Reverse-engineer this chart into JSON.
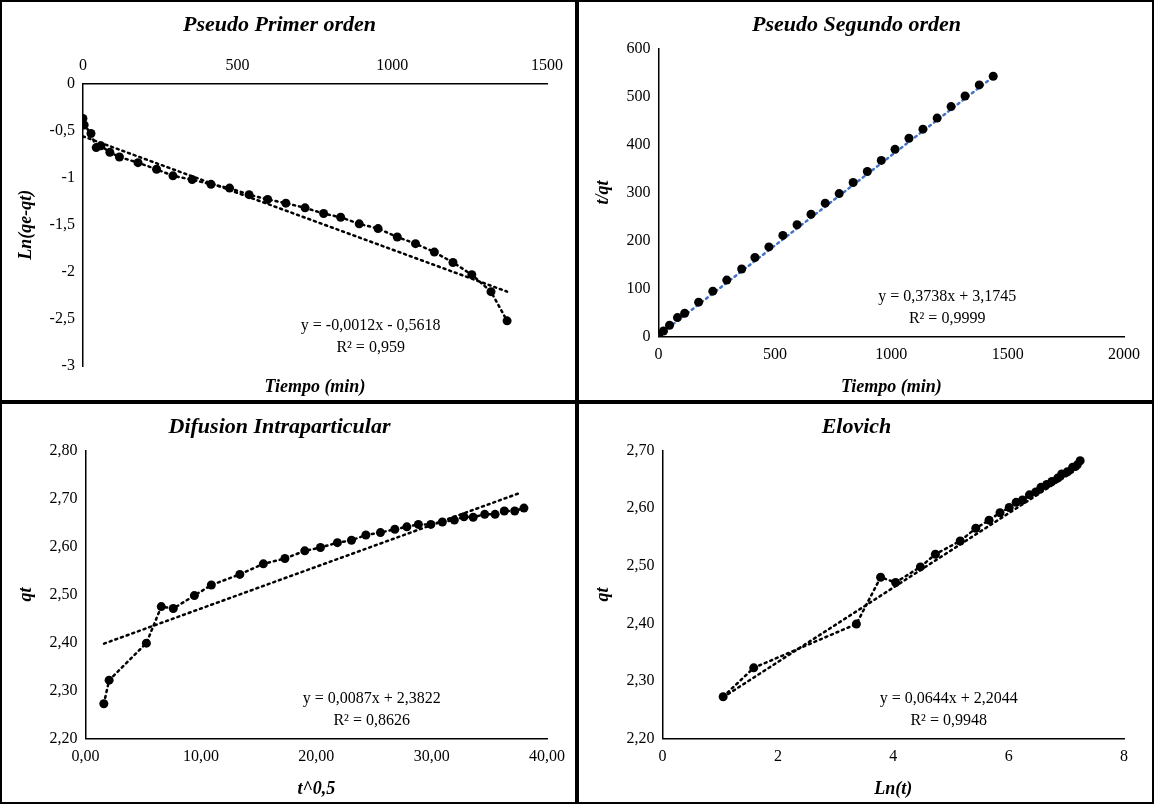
{
  "chart_data": [
    {
      "type": "line",
      "title": "Pseudo Primer orden",
      "xlabel": "Tiempo (min)",
      "ylabel": "Ln(qe-qt)",
      "xlim": [
        0,
        1500
      ],
      "xticks": [
        0,
        500,
        1000,
        1500
      ],
      "ylim": [
        -3,
        0
      ],
      "yticks": [
        -3,
        {
          "value": -2.5,
          "label": "-2,5"
        },
        -2,
        {
          "value": -1.5,
          "label": "-1,5"
        },
        -1,
        {
          "value": -0.5,
          "label": "-0,5"
        },
        0
      ],
      "series": [
        {
          "color": "#000000",
          "marker": "circle",
          "line_style": "dotted",
          "x": [
            0,
            4,
            26,
            43,
            58,
            87,
            118,
            178,
            238,
            291,
            353,
            414,
            474,
            537,
            597,
            656,
            718,
            778,
            833,
            893,
            954,
            1016,
            1075,
            1136,
            1196,
            1257,
            1319,
            1371
          ],
          "values": [
            -0.37,
            -0.44,
            -0.53,
            -0.68,
            -0.66,
            -0.73,
            -0.78,
            -0.84,
            -0.91,
            -0.98,
            -1.02,
            -1.07,
            -1.11,
            -1.18,
            -1.23,
            -1.27,
            -1.32,
            -1.38,
            -1.42,
            -1.49,
            -1.54,
            -1.63,
            -1.7,
            -1.79,
            -1.9,
            -2.03,
            -2.21,
            -2.52
          ]
        },
        {
          "color": "#000000",
          "marker": "none",
          "line_style": "dotted",
          "x": [
            0,
            1371
          ],
          "values": [
            -0.56,
            -2.21
          ]
        }
      ],
      "annotations": [
        "y = -0,0012x - 0,5618",
        "R² = 0,959"
      ]
    },
    {
      "type": "line",
      "title": "Pseudo Segundo orden",
      "xlabel": "Tiempo (min)",
      "ylabel": "t/qt",
      "xlim": [
        0,
        2000
      ],
      "xticks": [
        0,
        500,
        1000,
        1500,
        2000
      ],
      "ylim": [
        0,
        600
      ],
      "yticks": [
        0,
        100,
        200,
        300,
        400,
        500,
        600
      ],
      "series": [
        {
          "type": "scatter",
          "color": "#000000",
          "marker": "circle",
          "x": [
            0,
            21,
            47,
            81,
            112,
            172,
            233,
            293,
            357,
            414,
            474,
            534,
            595,
            655,
            716,
            776,
            836,
            897,
            957,
            1016,
            1076,
            1136,
            1197,
            1257,
            1317,
            1378,
            1438
          ],
          "values": [
            3,
            12,
            24,
            40,
            49,
            72,
            95,
            118,
            141,
            165,
            187,
            211,
            233,
            255,
            278,
            298,
            321,
            344,
            367,
            390,
            413,
            432,
            455,
            479,
            501,
            524,
            542
          ]
        },
        {
          "color": "#4472c4",
          "marker": "none",
          "line_style": "dotted",
          "x": [
            0,
            1438
          ],
          "values": [
            3,
            541
          ]
        }
      ],
      "annotations": [
        "y = 0,3738x + 3,1745",
        "R² = 0,9999"
      ]
    },
    {
      "type": "line",
      "title": "Difusion Intraparticular",
      "xlabel": "t^0,5",
      "ylabel": "qt",
      "xlim": [
        0,
        40
      ],
      "xticks": [
        {
          "value": 0,
          "label": "0,00"
        },
        {
          "value": 10,
          "label": "10,00"
        },
        {
          "value": 20,
          "label": "20,00"
        },
        {
          "value": 30,
          "label": "30,00"
        },
        {
          "value": 40,
          "label": "40,00"
        }
      ],
      "ylim": [
        2.2,
        2.8
      ],
      "yticks": [
        {
          "value": 2.2,
          "label": "2,20"
        },
        {
          "value": 2.3,
          "label": "2,30"
        },
        {
          "value": 2.4,
          "label": "2,40"
        },
        {
          "value": 2.5,
          "label": "2,50"
        },
        {
          "value": 2.6,
          "label": "2,60"
        },
        {
          "value": 2.7,
          "label": "2,70"
        },
        {
          "value": 2.8,
          "label": "2,80"
        }
      ],
      "series": [
        {
          "color": "#000000",
          "marker": "circle",
          "line_style": "dotted",
          "x": [
            1.58,
            2.04,
            5.27,
            6.56,
            7.6,
            9.43,
            10.9,
            13.37,
            15.41,
            17.28,
            19.0,
            20.36,
            21.83,
            23.05,
            24.3,
            25.56,
            26.81,
            27.85,
            28.85,
            29.93,
            30.93,
            31.97,
            32.8,
            33.6,
            34.6,
            35.5,
            36.3,
            37.2,
            38.0
          ],
          "values": [
            2.273,
            2.322,
            2.399,
            2.475,
            2.471,
            2.498,
            2.52,
            2.542,
            2.564,
            2.575,
            2.591,
            2.598,
            2.608,
            2.613,
            2.624,
            2.629,
            2.636,
            2.641,
            2.646,
            2.646,
            2.651,
            2.655,
            2.662,
            2.661,
            2.667,
            2.667,
            2.674,
            2.674,
            2.68
          ]
        },
        {
          "color": "#000000",
          "marker": "none",
          "line_style": "dotted",
          "x": [
            1.6,
            37.6
          ],
          "values": [
            2.398,
            2.711
          ]
        }
      ],
      "annotations": [
        "y = 0,0087x + 2,3822",
        "R² = 0,8626"
      ]
    },
    {
      "type": "line",
      "title": "Elovich",
      "xlabel": "Ln(t)",
      "ylabel": "qt",
      "xlim": [
        0,
        8
      ],
      "xticks": [
        0,
        2,
        4,
        6,
        8
      ],
      "ylim": [
        2.2,
        2.7
      ],
      "yticks": [
        {
          "value": 2.2,
          "label": "2,20"
        },
        {
          "value": 2.3,
          "label": "2,30"
        },
        {
          "value": 2.4,
          "label": "2,40"
        },
        {
          "value": 2.5,
          "label": "2,50"
        },
        {
          "value": 2.6,
          "label": "2,60"
        },
        {
          "value": 2.7,
          "label": "2,70"
        }
      ],
      "series": [
        {
          "color": "#000000",
          "marker": "circle",
          "line_style": "dotted",
          "x": [
            1.05,
            1.58,
            3.36,
            3.78,
            4.04,
            4.47,
            4.73,
            5.16,
            5.43,
            5.66,
            5.85,
            6.01,
            6.13,
            6.24,
            6.36,
            6.47,
            6.56,
            6.66,
            6.75,
            6.85,
            6.92,
            7.02,
            7.11,
            7.19,
            7.24
          ],
          "values": [
            2.273,
            2.323,
            2.399,
            2.48,
            2.471,
            2.498,
            2.52,
            2.543,
            2.565,
            2.579,
            2.592,
            2.601,
            2.61,
            2.614,
            2.623,
            2.628,
            2.636,
            2.641,
            2.646,
            2.652,
            2.659,
            2.663,
            2.671,
            2.675,
            2.682
          ]
        },
        {
          "color": "#000000",
          "marker": "none",
          "line_style": "dotted",
          "x": [
            1.05,
            7.24
          ],
          "values": [
            2.272,
            2.671
          ]
        }
      ],
      "annotations": [
        "y = 0,0644x + 2,2044",
        "R² = 0,9948"
      ]
    }
  ]
}
